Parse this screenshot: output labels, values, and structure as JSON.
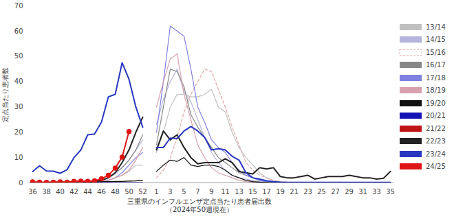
{
  "chart_data": {
    "type": "line",
    "xlabel": "三重県のインフルエンザ定点当たり患者届出数",
    "subtitle": "（2024年50週現在）",
    "ylabel": "定点当たり患者数",
    "categories": [
      "36",
      null,
      "38",
      null,
      "40",
      null,
      "42",
      null,
      "44",
      null,
      "46",
      null,
      "48",
      null,
      "50",
      null,
      "52",
      null,
      "1",
      null,
      "3",
      null,
      "5",
      null,
      "7",
      null,
      "9",
      null,
      "11",
      null,
      "13",
      null,
      "15",
      null,
      "17",
      null,
      "19",
      null,
      "21",
      null,
      "23",
      null,
      "25",
      null,
      "27",
      null,
      "29",
      null,
      "31",
      null,
      "33",
      null,
      "35"
    ],
    "ylim": [
      0,
      70
    ],
    "yticks": [
      0,
      10,
      20,
      30,
      40,
      50,
      60,
      70
    ],
    "grid": false,
    "legend": "right",
    "series": [
      {
        "name": "13/14",
        "color": "#c0c0c0",
        "line_style": "solid",
        "values": [
          0.2,
          0.2,
          0.2,
          0.2,
          0.3,
          0.3,
          0.3,
          0.4,
          0.5,
          0.6,
          0.8,
          1.2,
          2,
          3,
          4.5,
          7,
          7,
          null,
          12,
          20,
          30,
          35,
          35,
          34,
          34,
          35,
          37,
          30,
          28,
          20,
          14,
          10,
          7,
          4,
          2,
          1,
          0.5,
          0.3,
          0.2,
          0.1,
          0.1,
          0.1,
          0.1,
          0.1,
          0.1,
          0.1,
          0.1,
          0.1,
          0.1,
          0.1,
          0.1,
          0.1,
          0.1
        ]
      },
      {
        "name": "14/15",
        "color": "#b4b4dc",
        "line_style": "solid",
        "values": [
          0.1,
          0.1,
          0.1,
          0.1,
          0.1,
          0.2,
          0.2,
          0.3,
          0.4,
          0.6,
          1,
          2,
          3.5,
          6,
          9,
          13,
          17,
          null,
          23,
          33,
          40,
          45,
          36,
          32,
          25,
          18,
          12,
          8,
          5,
          3,
          2,
          1.5,
          1,
          0.5,
          0.3,
          0.2,
          0.1,
          0.1,
          0.1,
          0.1,
          0.1,
          0.1,
          0.1,
          0.1,
          0.1,
          0.1,
          0.1,
          0.1,
          0.1,
          0.1,
          0.1,
          0.1,
          0.1
        ]
      },
      {
        "name": "15/16",
        "color": "#e0a8a8",
        "line_style": "dashed",
        "values": [
          0.1,
          0.1,
          0.1,
          0.1,
          0.1,
          0.1,
          0.1,
          0.1,
          0.1,
          0.2,
          0.2,
          0.3,
          0.4,
          0.5,
          0.6,
          0.8,
          1,
          null,
          2,
          5,
          10,
          18,
          28,
          35,
          40,
          45,
          44,
          37,
          30,
          22,
          15,
          8,
          5,
          3,
          2,
          1,
          0.5,
          0.3,
          0.2,
          0.1,
          0.1,
          0.1,
          0.1,
          0.1,
          0.1,
          0.1,
          0.1,
          0.1,
          0.1,
          0.1,
          0.1,
          0.1,
          0.1
        ]
      },
      {
        "name": "16/17",
        "color": "#888888",
        "line_style": "solid",
        "values": [
          0.1,
          0.1,
          0.1,
          0.1,
          0.1,
          0.1,
          0.2,
          0.2,
          0.3,
          0.5,
          1,
          2,
          4,
          6,
          9,
          13,
          19,
          null,
          15,
          30,
          45,
          44,
          38,
          27,
          22,
          18,
          14,
          10,
          8,
          6,
          4,
          3,
          2,
          1,
          0.5,
          0.3,
          0.2,
          0.1,
          0.1,
          0.1,
          0.1,
          0.1,
          0.1,
          0.1,
          0.1,
          0.1,
          0.1,
          0.1,
          0.1,
          0.1,
          0.1,
          0.1,
          0.1
        ]
      },
      {
        "name": "17/18",
        "color": "#8080e0",
        "line_style": "solid",
        "values": [
          0.1,
          0.1,
          0.1,
          0.1,
          0.1,
          0.1,
          0.1,
          0.2,
          0.2,
          0.3,
          0.5,
          1,
          2,
          4,
          7,
          10,
          12,
          null,
          20,
          40,
          62,
          60,
          58,
          45,
          30,
          24,
          17,
          14,
          12,
          8,
          5,
          3,
          2,
          1,
          0.5,
          0.3,
          0.2,
          0.1,
          0.1,
          0.1,
          0.1,
          0.1,
          0.1,
          0.1,
          0.1,
          0.1,
          0.1,
          0.1,
          0.1,
          0.1,
          0.1,
          0.1,
          0.1
        ]
      },
      {
        "name": "18/19",
        "color": "#d8a0ac",
        "line_style": "solid",
        "values": [
          0.1,
          0.1,
          0.1,
          0.1,
          0.1,
          0.1,
          0.1,
          0.1,
          0.2,
          0.3,
          0.5,
          1,
          2,
          3,
          5,
          9,
          14,
          null,
          30,
          40,
          49,
          51,
          35,
          25,
          15,
          10,
          6,
          4,
          3,
          2,
          1,
          0.5,
          0.3,
          0.2,
          0.1,
          0.1,
          0.1,
          0.1,
          0.1,
          0.1,
          0.1,
          0.1,
          0.1,
          0.1,
          0.1,
          0.1,
          0.1,
          0.1,
          0.1,
          0.1,
          0.1,
          0.1,
          0.1
        ]
      },
      {
        "name": "19/20",
        "color": "#111111",
        "line_style": "solid",
        "values": [
          0.2,
          0.2,
          0.3,
          0.3,
          0.3,
          0.3,
          0.3,
          0.4,
          0.4,
          0.4,
          0.5,
          0.5,
          0.6,
          0.6,
          0.7,
          0.8,
          1,
          null,
          4.5,
          7,
          9,
          8.5,
          10,
          7,
          6.5,
          7,
          7,
          6.5,
          5,
          3,
          2,
          1,
          0.5,
          0.3,
          0.2,
          0.1,
          0.1,
          0.1,
          0,
          0,
          0,
          0,
          0,
          0,
          0,
          0,
          0,
          0,
          0,
          0,
          0,
          0,
          0
        ]
      },
      {
        "name": "20/21",
        "color": "#1414b4",
        "line_style": "solid",
        "values": [
          0.1,
          0.1,
          0.1,
          0.1,
          0.1,
          0.1,
          0.1,
          0.1,
          0.1,
          0.1,
          0.1,
          0.1,
          0.1,
          0.1,
          0.1,
          0.1,
          0.1,
          null,
          0,
          0,
          0,
          0,
          0,
          0,
          0,
          0,
          0,
          0,
          0,
          0,
          0,
          0,
          0,
          0,
          0,
          0,
          0,
          0,
          0,
          0,
          0,
          0,
          0,
          0,
          0,
          0,
          0,
          0,
          0,
          0,
          0,
          0,
          0
        ]
      },
      {
        "name": "21/22",
        "color": "#c01414",
        "line_style": "solid",
        "values": [
          0,
          0,
          0,
          0,
          0,
          0,
          0,
          0,
          0,
          0,
          0,
          0,
          0,
          0,
          0,
          0,
          0,
          null,
          0,
          0,
          0,
          0,
          0,
          0,
          0,
          0,
          0,
          0,
          0,
          0,
          0,
          0,
          0,
          0,
          0,
          0,
          0,
          0,
          0,
          0,
          0,
          0,
          0,
          0,
          0,
          0,
          0,
          0,
          0,
          0,
          0,
          0,
          0
        ]
      },
      {
        "name": "22/23",
        "color": "#222222",
        "line_style": "solid",
        "values": [
          0,
          0,
          0,
          0,
          0,
          0,
          0,
          0,
          0.2,
          0.5,
          1,
          2,
          4,
          8,
          13,
          20,
          26,
          null,
          13,
          20.5,
          17,
          19,
          14,
          10,
          7.5,
          8,
          8,
          8,
          9.5,
          8,
          4.5,
          4,
          3.5,
          6,
          5.5,
          6,
          2.5,
          2,
          2,
          2.5,
          3,
          1.5,
          2,
          2.5,
          2.5,
          2.5,
          3,
          2.5,
          2,
          2,
          1.5,
          1.8,
          4.5
        ]
      },
      {
        "name": "23/24",
        "color": "#2838c0",
        "line_style": "solid",
        "values": [
          4.5,
          6.8,
          4.7,
          4.6,
          3.8,
          5.2,
          10,
          13,
          19,
          19.3,
          24,
          34,
          35,
          47.5,
          41,
          30,
          22,
          null,
          14,
          14,
          17.7,
          17.5,
          20.5,
          22.3,
          20.5,
          18,
          13,
          13.5,
          13,
          10.5,
          9,
          4,
          2,
          1.5,
          0.8,
          0.5,
          0.3,
          0.2,
          0.2,
          0.2,
          0.2,
          0.2,
          0.2,
          0.2,
          0.2,
          0.2,
          0.2,
          0.2,
          0.2,
          0.2,
          0.2,
          0.2,
          0.2
        ]
      },
      {
        "name": "24/25",
        "color": "#e01414",
        "line_style": "solid",
        "marker": "circle",
        "values": [
          0.4,
          0.3,
          0.2,
          0.3,
          0.4,
          0.3,
          0.6,
          0.7,
          0.6,
          0.8,
          1.6,
          3,
          5.8,
          10.2,
          20.3,
          null,
          null,
          null,
          null,
          null,
          null,
          null,
          null,
          null,
          null,
          null,
          null,
          null,
          null,
          null,
          null,
          null,
          null,
          null,
          null,
          null,
          null,
          null,
          null,
          null,
          null,
          null,
          null,
          null,
          null,
          null,
          null,
          null,
          null,
          null,
          null,
          null,
          null
        ]
      }
    ]
  }
}
